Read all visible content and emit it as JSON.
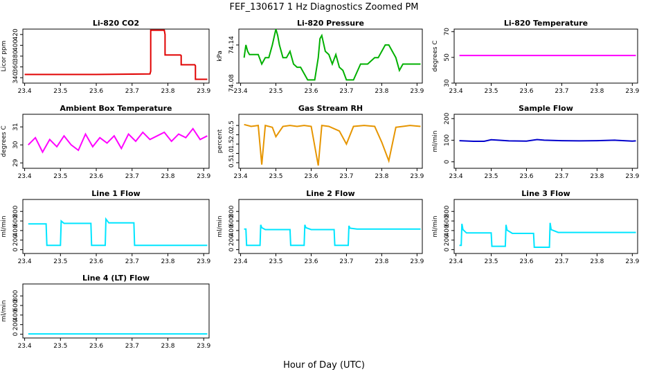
{
  "figure": {
    "title": "FEF_130617  1 Hz Diagnostics Zoomed PM",
    "xlabel": "Hour of Day (UTC)"
  },
  "chart_data": [
    {
      "id": "co2",
      "type": "line",
      "title": "Li-820 CO2",
      "ylabel": "Licor ppm",
      "color": "#e00000",
      "xlim": [
        23.395,
        23.915
      ],
      "ylim": [
        330,
        430
      ],
      "xticks": [
        23.4,
        23.5,
        23.6,
        23.7,
        23.8,
        23.9
      ],
      "yticks": [
        340,
        360,
        380,
        400,
        420
      ],
      "x": [
        23.4,
        23.5,
        23.6,
        23.75,
        23.752,
        23.752,
        23.755,
        23.79,
        23.792,
        23.792,
        23.835,
        23.837,
        23.837,
        23.875,
        23.877,
        23.877,
        23.91
      ],
      "y": [
        346,
        346,
        346,
        347,
        352,
        428,
        428,
        428,
        420,
        382,
        382,
        381,
        364,
        364,
        362,
        337,
        337
      ]
    },
    {
      "id": "pressure",
      "type": "line",
      "title": "Li-820 Pressure",
      "ylabel": "kPa",
      "color": "#00b000",
      "xlim": [
        23.395,
        23.915
      ],
      "ylim": [
        74.08,
        74.165
      ],
      "xticks": [
        23.4,
        23.5,
        23.6,
        23.7,
        23.8,
        23.9
      ],
      "yticks": [
        74.08,
        74.14
      ],
      "x": [
        23.41,
        23.415,
        23.42,
        23.425,
        23.43,
        23.44,
        23.45,
        23.46,
        23.47,
        23.48,
        23.49,
        23.5,
        23.505,
        23.51,
        23.52,
        23.53,
        23.54,
        23.55,
        23.56,
        23.57,
        23.58,
        23.59,
        23.6,
        23.61,
        23.62,
        23.625,
        23.63,
        23.64,
        23.65,
        23.66,
        23.67,
        23.68,
        23.69,
        23.7,
        23.72,
        23.74,
        23.76,
        23.78,
        23.79,
        23.8,
        23.81,
        23.82,
        23.83,
        23.84,
        23.85,
        23.86,
        23.88,
        23.9,
        23.91
      ],
      "y": [
        74.12,
        74.14,
        74.13,
        74.125,
        74.125,
        74.125,
        74.125,
        74.11,
        74.12,
        74.12,
        74.14,
        74.165,
        74.155,
        74.14,
        74.12,
        74.12,
        74.13,
        74.11,
        74.105,
        74.105,
        74.095,
        74.085,
        74.085,
        74.085,
        74.12,
        74.15,
        74.155,
        74.13,
        74.125,
        74.11,
        74.125,
        74.105,
        74.1,
        74.085,
        74.085,
        74.11,
        74.11,
        74.12,
        74.12,
        74.13,
        74.14,
        74.14,
        74.13,
        74.12,
        74.1,
        74.11,
        74.11,
        74.11,
        74.11
      ]
    },
    {
      "id": "licor_temp",
      "type": "line",
      "title": "Li-820 Temperature",
      "ylabel": "degrees C",
      "color": "#ff00ff",
      "xlim": [
        23.395,
        23.915
      ],
      "ylim": [
        30,
        72
      ],
      "xticks": [
        23.4,
        23.5,
        23.6,
        23.7,
        23.8,
        23.9
      ],
      "yticks": [
        30,
        50,
        70
      ],
      "x": [
        23.41,
        23.91
      ],
      "y": [
        51.5,
        51.5
      ]
    },
    {
      "id": "ambient_box_temp",
      "type": "line",
      "title": "Ambient Box Temperature",
      "ylabel": "degrees C",
      "color": "#ff00ff",
      "xlim": [
        23.395,
        23.915
      ],
      "ylim": [
        28.7,
        31.7
      ],
      "xticks": [
        23.4,
        23.5,
        23.6,
        23.7,
        23.8,
        23.9
      ],
      "yticks": [
        29.0,
        30.0,
        31.0
      ],
      "x": [
        23.41,
        23.43,
        23.45,
        23.47,
        23.49,
        23.51,
        23.53,
        23.55,
        23.57,
        23.59,
        23.61,
        23.63,
        23.65,
        23.67,
        23.69,
        23.71,
        23.73,
        23.75,
        23.77,
        23.79,
        23.81,
        23.83,
        23.85,
        23.87,
        23.89,
        23.91
      ],
      "y": [
        30.0,
        30.4,
        29.6,
        30.3,
        29.9,
        30.5,
        30.0,
        29.7,
        30.6,
        29.9,
        30.4,
        30.1,
        30.5,
        29.8,
        30.6,
        30.2,
        30.7,
        30.3,
        30.5,
        30.7,
        30.2,
        30.6,
        30.4,
        30.9,
        30.3,
        30.5
      ]
    },
    {
      "id": "gas_stream_rh",
      "type": "line",
      "title": "Gas Stream RH",
      "ylabel": "percent",
      "color": "#e69500",
      "xlim": [
        23.395,
        23.915
      ],
      "ylim": [
        0.2,
        3.1
      ],
      "xticks": [
        23.4,
        23.5,
        23.6,
        23.7,
        23.8,
        23.9
      ],
      "yticks": [
        0.5,
        1.0,
        1.5,
        2.0,
        2.5
      ],
      "x": [
        23.41,
        23.43,
        23.45,
        23.46,
        23.47,
        23.49,
        23.5,
        23.52,
        23.54,
        23.56,
        23.58,
        23.6,
        23.62,
        23.63,
        23.65,
        23.68,
        23.7,
        23.72,
        23.75,
        23.78,
        23.8,
        23.82,
        23.84,
        23.86,
        23.88,
        23.91
      ],
      "y": [
        2.55,
        2.45,
        2.5,
        0.4,
        2.5,
        2.4,
        1.9,
        2.45,
        2.5,
        2.45,
        2.5,
        2.45,
        0.35,
        2.5,
        2.45,
        2.2,
        1.5,
        2.45,
        2.5,
        2.45,
        1.6,
        0.6,
        2.4,
        2.45,
        2.5,
        2.45
      ]
    },
    {
      "id": "sample_flow",
      "type": "line",
      "title": "Sample Flow",
      "ylabel": "ml/min",
      "color": "#0000cc",
      "xlim": [
        23.395,
        23.915
      ],
      "ylim": [
        -30,
        220
      ],
      "xticks": [
        23.4,
        23.5,
        23.6,
        23.7,
        23.8,
        23.9
      ],
      "yticks": [
        0,
        100,
        200
      ],
      "x": [
        23.41,
        23.45,
        23.48,
        23.5,
        23.52,
        23.55,
        23.6,
        23.63,
        23.65,
        23.7,
        23.75,
        23.8,
        23.85,
        23.9,
        23.91
      ],
      "y": [
        98,
        95,
        95,
        102,
        100,
        97,
        96,
        103,
        100,
        98,
        97,
        98,
        100,
        96,
        97
      ]
    },
    {
      "id": "line1_flow",
      "type": "line",
      "title": "Line 1 Flow",
      "ylabel": "ml/min",
      "color": "#00e5ff",
      "xlim": [
        23.395,
        23.915
      ],
      "ylim": [
        -80,
        1050
      ],
      "xticks": [
        23.4,
        23.5,
        23.6,
        23.7,
        23.8,
        23.9
      ],
      "yticks": [
        0,
        200,
        400,
        600,
        800
      ],
      "x": [
        23.41,
        23.46,
        23.462,
        23.5,
        23.502,
        23.51,
        23.585,
        23.587,
        23.625,
        23.627,
        23.635,
        23.705,
        23.707,
        23.91
      ],
      "y": [
        540,
        540,
        90,
        90,
        600,
        550,
        550,
        90,
        90,
        640,
        560,
        560,
        90,
        90
      ]
    },
    {
      "id": "line2_flow",
      "type": "line",
      "title": "Line 2 Flow",
      "ylabel": "ml/min",
      "color": "#00e5ff",
      "xlim": [
        23.395,
        23.915
      ],
      "ylim": [
        -80,
        1050
      ],
      "xticks": [
        23.4,
        23.5,
        23.6,
        23.7,
        23.8,
        23.9
      ],
      "yticks": [
        0,
        200,
        400,
        600,
        800
      ],
      "x": [
        23.41,
        23.415,
        23.417,
        23.455,
        23.457,
        23.46,
        23.47,
        23.54,
        23.542,
        23.58,
        23.582,
        23.585,
        23.6,
        23.665,
        23.667,
        23.705,
        23.707,
        23.71,
        23.73,
        23.91
      ],
      "y": [
        430,
        430,
        90,
        90,
        520,
        460,
        420,
        420,
        90,
        90,
        520,
        460,
        420,
        420,
        90,
        90,
        500,
        450,
        430,
        430
      ]
    },
    {
      "id": "line3_flow",
      "type": "line",
      "title": "Line 3 Flow",
      "ylabel": "ml/min",
      "color": "#00e5ff",
      "xlim": [
        23.395,
        23.915
      ],
      "ylim": [
        -80,
        1050
      ],
      "xticks": [
        23.4,
        23.5,
        23.6,
        23.7,
        23.8,
        23.9
      ],
      "yticks": [
        0,
        200,
        400,
        600,
        800
      ],
      "x": [
        23.41,
        23.415,
        23.417,
        23.42,
        23.43,
        23.5,
        23.502,
        23.54,
        23.542,
        23.545,
        23.56,
        23.62,
        23.622,
        23.665,
        23.667,
        23.67,
        23.69,
        23.91
      ],
      "y": [
        90,
        90,
        540,
        420,
        350,
        350,
        70,
        70,
        520,
        410,
        340,
        340,
        50,
        50,
        560,
        420,
        360,
        360
      ]
    },
    {
      "id": "line4_flow",
      "type": "line",
      "title": "Line 4 (LT) Flow",
      "ylabel": "ml/min",
      "color": "#00e5ff",
      "xlim": [
        23.395,
        23.915
      ],
      "ylim": [
        -80,
        1050
      ],
      "xticks": [
        23.4,
        23.5,
        23.6,
        23.7,
        23.8,
        23.9
      ],
      "yticks": [
        0,
        200,
        400,
        600,
        800
      ],
      "x": [
        23.41,
        23.91
      ],
      "y": [
        5,
        5
      ]
    }
  ]
}
